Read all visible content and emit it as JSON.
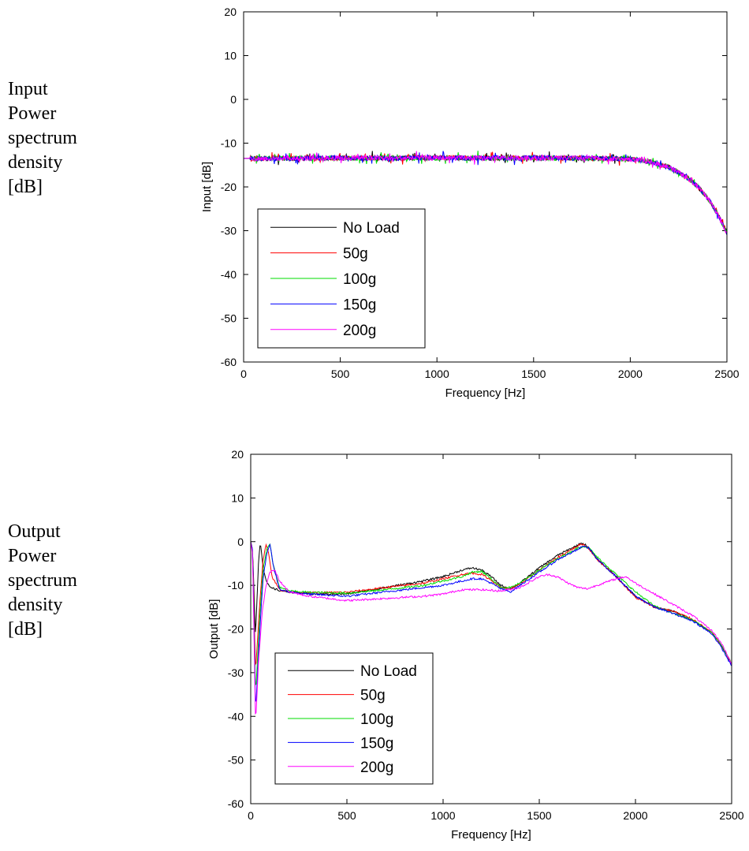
{
  "labels": {
    "top": "Input\nPower\nspectrum\ndensity\n[dB]",
    "bottom": "Output\nPower\nspectrum\ndensity\n[dB]"
  },
  "colors": {
    "No Load": "#000000",
    "50g": "#ff0000",
    "100g": "#00dd00",
    "150g": "#0000ff",
    "200g": "#ff00ff"
  },
  "chart_data": [
    {
      "type": "line",
      "xlabel": "Frequency [Hz]",
      "ylabel": "Input [dB]",
      "xlim": [
        0,
        2500
      ],
      "ylim": [
        -60,
        20
      ],
      "xticks": [
        0,
        500,
        1000,
        1500,
        2000,
        2500
      ],
      "yticks": [
        20,
        10,
        0,
        -10,
        -20,
        -30,
        -40,
        -50,
        -60
      ],
      "legend": [
        "No Load",
        "50g",
        "100g",
        "150g",
        "200g"
      ],
      "legend_position": "bottom-left",
      "note": "All five series overlap; noisy flat spectrum near -13.5 dB rolling off above 2000 Hz",
      "series": [
        {
          "name": "No Load",
          "x": [
            0,
            250,
            500,
            750,
            1000,
            1250,
            1500,
            1750,
            2000,
            2100,
            2200,
            2300,
            2350,
            2400,
            2450,
            2500
          ],
          "y": [
            -13.5,
            -13.5,
            -13.4,
            -13.4,
            -13.4,
            -13.4,
            -13.4,
            -13.4,
            -13.6,
            -14.2,
            -15.5,
            -18.0,
            -20.0,
            -22.5,
            -26.0,
            -30.5
          ]
        },
        {
          "name": "50g",
          "x": [
            0,
            250,
            500,
            750,
            1000,
            1250,
            1500,
            1750,
            2000,
            2100,
            2200,
            2300,
            2350,
            2400,
            2450,
            2500
          ],
          "y": [
            -13.5,
            -13.5,
            -13.4,
            -13.4,
            -13.4,
            -13.4,
            -13.4,
            -13.4,
            -13.6,
            -14.2,
            -15.5,
            -18.0,
            -20.0,
            -22.5,
            -26.0,
            -30.5
          ]
        },
        {
          "name": "100g",
          "x": [
            0,
            250,
            500,
            750,
            1000,
            1250,
            1500,
            1750,
            2000,
            2100,
            2200,
            2300,
            2350,
            2400,
            2450,
            2500
          ],
          "y": [
            -13.5,
            -13.5,
            -13.4,
            -13.4,
            -13.4,
            -13.4,
            -13.4,
            -13.4,
            -13.6,
            -14.2,
            -15.5,
            -18.0,
            -20.0,
            -22.5,
            -26.0,
            -30.5
          ]
        },
        {
          "name": "150g",
          "x": [
            0,
            250,
            500,
            750,
            1000,
            1250,
            1500,
            1750,
            2000,
            2100,
            2200,
            2300,
            2350,
            2400,
            2450,
            2500
          ],
          "y": [
            -13.5,
            -13.5,
            -13.4,
            -13.4,
            -13.4,
            -13.4,
            -13.4,
            -13.4,
            -13.6,
            -14.2,
            -15.5,
            -18.0,
            -20.0,
            -22.5,
            -26.0,
            -30.5
          ]
        },
        {
          "name": "200g",
          "x": [
            0,
            250,
            500,
            750,
            1000,
            1250,
            1500,
            1750,
            2000,
            2100,
            2200,
            2300,
            2350,
            2400,
            2450,
            2500
          ],
          "y": [
            -13.5,
            -13.5,
            -13.4,
            -13.4,
            -13.4,
            -13.4,
            -13.4,
            -13.4,
            -13.6,
            -14.2,
            -15.5,
            -18.0,
            -20.0,
            -22.5,
            -26.0,
            -30.5
          ]
        }
      ]
    },
    {
      "type": "line",
      "xlabel": "Frequency [Hz]",
      "ylabel": "Output [dB]",
      "xlim": [
        0,
        2500
      ],
      "ylim": [
        -60,
        20
      ],
      "xticks": [
        0,
        500,
        1000,
        1500,
        2000,
        2500
      ],
      "yticks": [
        20,
        10,
        0,
        -10,
        -20,
        -30,
        -40,
        -50,
        -60
      ],
      "legend": [
        "No Load",
        "50g",
        "100g",
        "150g",
        "200g"
      ],
      "legend_position": "bottom-left",
      "series": [
        {
          "name": "No Load",
          "x": [
            0,
            10,
            25,
            40,
            50,
            65,
            80,
            100,
            150,
            200,
            300,
            500,
            700,
            900,
            1000,
            1100,
            1150,
            1200,
            1250,
            1300,
            1350,
            1400,
            1500,
            1600,
            1700,
            1720,
            1750,
            1800,
            1900,
            2000,
            2100,
            2200,
            2300,
            2400,
            2450,
            2500
          ],
          "y": [
            0,
            -2,
            -22,
            -5,
            0,
            -6,
            -9,
            -10.5,
            -11.2,
            -11.5,
            -12.0,
            -12.0,
            -10.5,
            -9.0,
            -8.0,
            -6.5,
            -6.0,
            -6.5,
            -8.0,
            -10.0,
            -10.8,
            -9.5,
            -6.0,
            -3.0,
            -0.8,
            -0.3,
            -1.0,
            -4.0,
            -8.0,
            -12.5,
            -15.0,
            -16.0,
            -18.0,
            -21.0,
            -24.0,
            -28.0
          ]
        },
        {
          "name": "50g",
          "x": [
            0,
            10,
            25,
            50,
            65,
            80,
            95,
            110,
            150,
            200,
            300,
            500,
            700,
            900,
            1000,
            1100,
            1150,
            1200,
            1250,
            1300,
            1350,
            1400,
            1500,
            1600,
            1700,
            1720,
            1750,
            1800,
            1900,
            2000,
            2100,
            2200,
            2300,
            2400,
            2450,
            2500
          ],
          "y": [
            0,
            -2,
            -30,
            -12,
            -4,
            -0.5,
            -3,
            -8,
            -11.0,
            -11.5,
            -11.7,
            -11.6,
            -10.5,
            -9.5,
            -8.5,
            -7.5,
            -7.2,
            -7.5,
            -8.8,
            -10.5,
            -10.8,
            -9.8,
            -6.5,
            -3.5,
            -1.0,
            -0.5,
            -1.2,
            -4.0,
            -8.0,
            -12.8,
            -15.0,
            -16.0,
            -17.8,
            -21.0,
            -24.0,
            -28.0
          ]
        },
        {
          "name": "100g",
          "x": [
            0,
            10,
            25,
            50,
            65,
            85,
            100,
            115,
            150,
            200,
            300,
            500,
            700,
            900,
            1000,
            1100,
            1150,
            1200,
            1250,
            1300,
            1350,
            1400,
            1500,
            1600,
            1700,
            1730,
            1760,
            1800,
            1900,
            2000,
            2100,
            2200,
            2300,
            2400,
            2450,
            2500
          ],
          "y": [
            0,
            -2,
            -35,
            -15,
            -6,
            -1.5,
            -0.5,
            -5,
            -10.5,
            -11.3,
            -11.6,
            -11.8,
            -11.0,
            -10.0,
            -9.0,
            -8.0,
            -7.0,
            -6.8,
            -8.5,
            -10.5,
            -10.5,
            -9.5,
            -6.5,
            -3.8,
            -1.5,
            -1.0,
            -1.5,
            -3.5,
            -7.5,
            -11.5,
            -14.8,
            -16.5,
            -18.0,
            -21.0,
            -24.0,
            -28.0
          ]
        },
        {
          "name": "150g",
          "x": [
            0,
            10,
            25,
            50,
            65,
            85,
            100,
            120,
            150,
            200,
            300,
            500,
            700,
            900,
            1000,
            1100,
            1150,
            1200,
            1250,
            1300,
            1350,
            1400,
            1500,
            1600,
            1700,
            1730,
            1760,
            1800,
            1900,
            2000,
            2100,
            2200,
            2300,
            2400,
            2450,
            2500
          ],
          "y": [
            0,
            -2,
            -39,
            -18,
            -8,
            -2.5,
            -0.5,
            -6,
            -11.0,
            -11.5,
            -12.0,
            -12.5,
            -11.5,
            -10.5,
            -10.0,
            -9.0,
            -8.5,
            -8.5,
            -9.5,
            -10.8,
            -11.5,
            -10.0,
            -7.0,
            -4.0,
            -1.8,
            -1.0,
            -1.5,
            -4.0,
            -8.0,
            -12.5,
            -15.0,
            -16.5,
            -18.2,
            -21.2,
            -24.5,
            -28.5
          ]
        },
        {
          "name": "200g",
          "x": [
            0,
            10,
            25,
            40,
            60,
            80,
            100,
            125,
            150,
            200,
            300,
            500,
            700,
            900,
            1000,
            1100,
            1200,
            1300,
            1400,
            1500,
            1550,
            1600,
            1650,
            1700,
            1750,
            1800,
            1900,
            1950,
            2000,
            2100,
            2200,
            2300,
            2400,
            2450,
            2500
          ],
          "y": [
            0,
            -3,
            -42,
            -28,
            -16,
            -10,
            -7,
            -6.5,
            -9,
            -11.5,
            -12.5,
            -13.5,
            -13.0,
            -12.5,
            -12.0,
            -11.0,
            -11.0,
            -11.3,
            -10.5,
            -8.0,
            -7.5,
            -8.2,
            -9.5,
            -10.5,
            -10.8,
            -10.0,
            -8.5,
            -8.0,
            -9.5,
            -12.0,
            -14.5,
            -17.0,
            -20.5,
            -23.5,
            -28.0
          ]
        }
      ]
    }
  ]
}
